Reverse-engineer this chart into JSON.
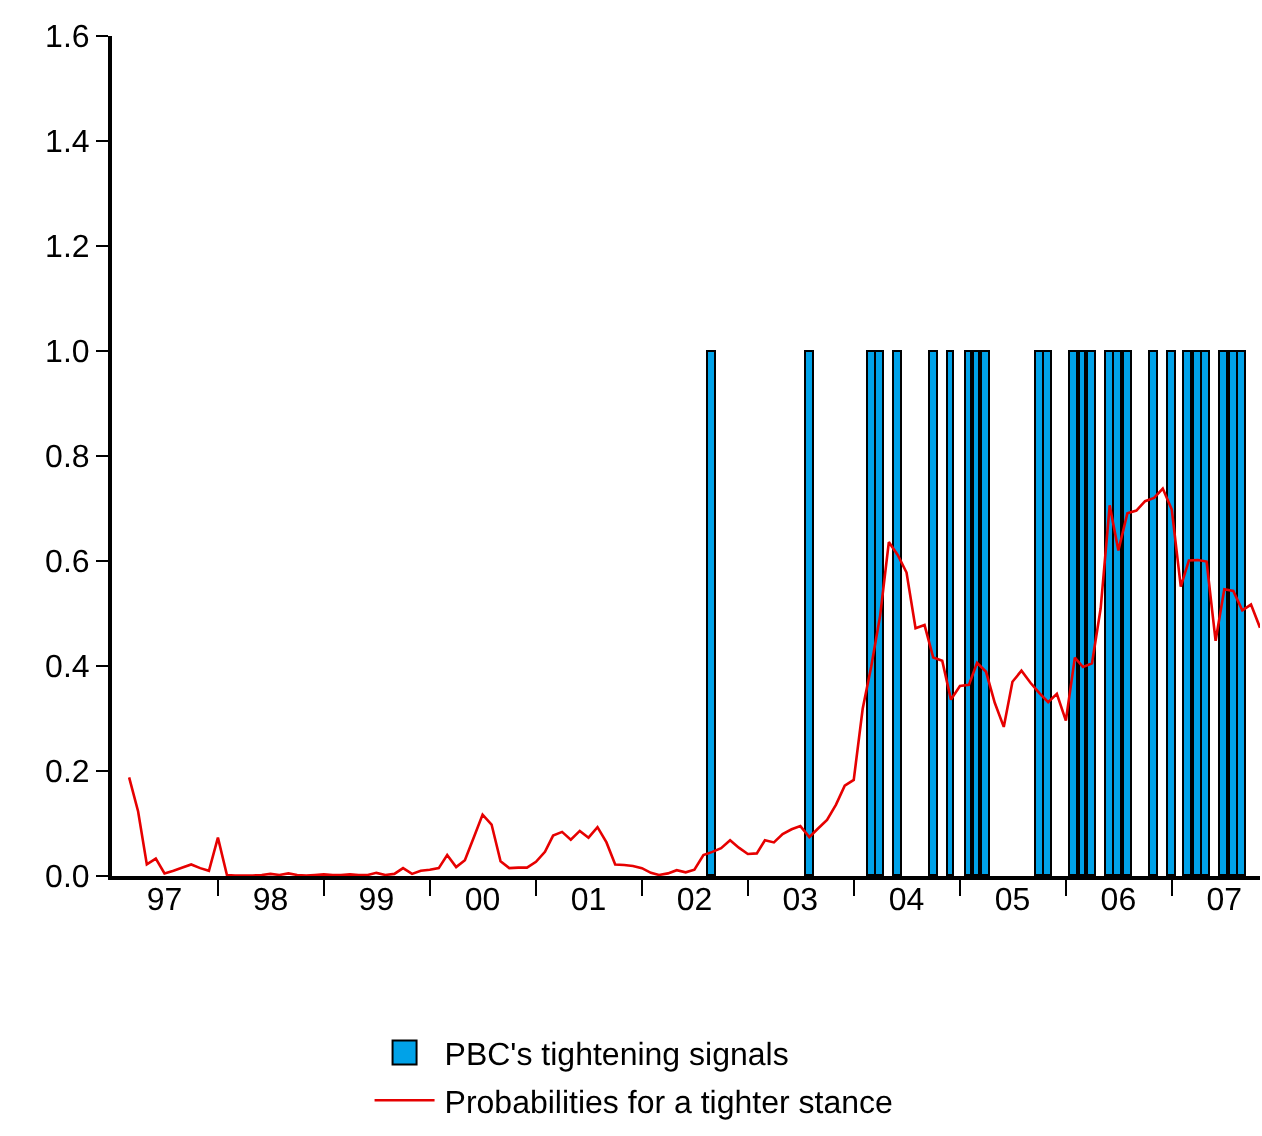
{
  "chart_data": {
    "type": "line",
    "xlim": [
      "1997-01",
      "2007-11"
    ],
    "ylim": [
      0,
      1.6
    ],
    "yticks": [
      {
        "value": 0,
        "label": "0.0"
      },
      {
        "value": 0.2,
        "label": "0.2"
      },
      {
        "value": 0.4,
        "label": "0.4"
      },
      {
        "value": 0.6,
        "label": "0.6"
      },
      {
        "value": 0.8,
        "label": "0.8"
      },
      {
        "value": 1.0,
        "label": "1.0"
      },
      {
        "value": 1.2,
        "label": "1.2"
      },
      {
        "value": 1.4,
        "label": "1.4"
      },
      {
        "value": 1.6,
        "label": "1.6"
      }
    ],
    "xticks": [
      {
        "value": "1998-01",
        "label": null
      },
      {
        "value": "1999-01",
        "label": null
      },
      {
        "value": "2000-01",
        "label": null
      },
      {
        "value": "2001-01",
        "label": null
      },
      {
        "value": "2002-01",
        "label": null
      },
      {
        "value": "2003-01",
        "label": null
      },
      {
        "value": "2004-01",
        "label": null
      },
      {
        "value": "2005-01",
        "label": null
      },
      {
        "value": "2006-01",
        "label": null
      },
      {
        "value": "2007-01",
        "label": null
      },
      {
        "value": "1997-07",
        "label": "97"
      },
      {
        "value": "1998-07",
        "label": "98"
      },
      {
        "value": "1999-07",
        "label": "99"
      },
      {
        "value": "2000-07",
        "label": "00"
      },
      {
        "value": "2001-07",
        "label": "01"
      },
      {
        "value": "2002-07",
        "label": "02"
      },
      {
        "value": "2003-07",
        "label": "03"
      },
      {
        "value": "2004-07",
        "label": "04"
      },
      {
        "value": "2005-07",
        "label": "05"
      },
      {
        "value": "2006-07",
        "label": "06"
      },
      {
        "value": "2007-07",
        "label": "07"
      }
    ],
    "grid": false,
    "legend": "bottom",
    "marker": "none",
    "line_style": "solid",
    "series": [
      {
        "name": "PBC's tightening signals",
        "type": "bar",
        "color": "#00a2e8",
        "x": [
          "2002-09",
          "2003-08",
          "2004-03",
          "2004-04",
          "2004-06",
          "2004-10",
          "2004-12",
          "2005-02",
          "2005-03",
          "2005-04",
          "2005-10",
          "2005-11",
          "2006-02",
          "2006-03",
          "2006-04",
          "2006-06",
          "2006-07",
          "2006-08",
          "2006-11",
          "2007-01",
          "2007-03",
          "2007-04",
          "2007-05",
          "2007-07",
          "2007-08",
          "2007-09"
        ],
        "values": [
          1,
          1,
          1,
          1,
          1,
          1,
          1,
          1,
          1,
          1,
          1,
          1,
          1,
          1,
          1,
          1,
          1,
          1,
          1,
          1,
          1,
          1,
          1,
          1,
          1,
          1
        ]
      },
      {
        "name": "Probabilities for a tighter stance",
        "color": "#e60000",
        "x": [
          "1997-03",
          "1997-04",
          "1997-05",
          "1997-06",
          "1997-07",
          "1997-08",
          "1997-09",
          "1997-10",
          "1997-11",
          "1997-12",
          "1998-01",
          "1998-02",
          "1998-03",
          "1998-04",
          "1998-05",
          "1998-06",
          "1998-07",
          "1998-08",
          "1998-09",
          "1998-10",
          "1998-11",
          "1998-12",
          "1999-01",
          "1999-02",
          "1999-03",
          "1999-04",
          "1999-05",
          "1999-06",
          "1999-07",
          "1999-08",
          "1999-09",
          "1999-10",
          "1999-11",
          "1999-12",
          "2000-01",
          "2000-02",
          "2000-03",
          "2000-04",
          "2000-05",
          "2000-06",
          "2000-07",
          "2000-08",
          "2000-09",
          "2000-10",
          "2000-11",
          "2000-12",
          "2001-01",
          "2001-02",
          "2001-03",
          "2001-04",
          "2001-05",
          "2001-06",
          "2001-07",
          "2001-08",
          "2001-09",
          "2001-10",
          "2001-11",
          "2001-12",
          "2002-01",
          "2002-02",
          "2002-03",
          "2002-04",
          "2002-05",
          "2002-06",
          "2002-07",
          "2002-08",
          "2002-09",
          "2002-10",
          "2002-11",
          "2002-12",
          "2003-01",
          "2003-02",
          "2003-03",
          "2003-04",
          "2003-05",
          "2003-06",
          "2003-07",
          "2003-08",
          "2003-09",
          "2003-10",
          "2003-11",
          "2003-12",
          "2004-01",
          "2004-02",
          "2004-03",
          "2004-04",
          "2004-05",
          "2004-06",
          "2004-07",
          "2004-08",
          "2004-09",
          "2004-10",
          "2004-11",
          "2004-12",
          "2005-01",
          "2005-02",
          "2005-03",
          "2005-04",
          "2005-05",
          "2005-06",
          "2005-07",
          "2005-08",
          "2005-09",
          "2005-10",
          "2005-11",
          "2005-12",
          "2006-01",
          "2006-02",
          "2006-03",
          "2006-04",
          "2006-05",
          "2006-06",
          "2006-07",
          "2006-08",
          "2006-09",
          "2006-10",
          "2006-11",
          "2006-12",
          "2007-01",
          "2007-02",
          "2007-03",
          "2007-04",
          "2007-05",
          "2007-06",
          "2007-07",
          "2007-08",
          "2007-09",
          "2007-10",
          "2007-11"
        ],
        "values": [
          0.188,
          0.123,
          0.022,
          0.033,
          0.005,
          0.01,
          0.016,
          0.022,
          0.015,
          0.01,
          0.073,
          0.002,
          0.001,
          0.001,
          0.001,
          0.002,
          0.004,
          0.002,
          0.005,
          0.002,
          0.001,
          0.002,
          0.003,
          0.002,
          0.002,
          0.003,
          0.002,
          0.002,
          0.006,
          0.002,
          0.004,
          0.015,
          0.004,
          0.01,
          0.012,
          0.015,
          0.04,
          0.017,
          0.03,
          0.074,
          0.117,
          0.098,
          0.028,
          0.015,
          0.016,
          0.016,
          0.027,
          0.046,
          0.077,
          0.084,
          0.069,
          0.086,
          0.073,
          0.093,
          0.064,
          0.022,
          0.021,
          0.019,
          0.015,
          0.006,
          0.002,
          0.005,
          0.011,
          0.007,
          0.012,
          0.04,
          0.046,
          0.053,
          0.068,
          0.054,
          0.042,
          0.043,
          0.068,
          0.064,
          0.08,
          0.089,
          0.095,
          0.074,
          0.091,
          0.107,
          0.136,
          0.172,
          0.183,
          0.319,
          0.398,
          0.496,
          0.636,
          0.611,
          0.578,
          0.472,
          0.478,
          0.416,
          0.41,
          0.336,
          0.362,
          0.364,
          0.406,
          0.389,
          0.33,
          0.284,
          0.37,
          0.391,
          0.368,
          0.349,
          0.331,
          0.347,
          0.296,
          0.416,
          0.398,
          0.405,
          0.51,
          0.706,
          0.62,
          0.691,
          0.696,
          0.714,
          0.72,
          0.738,
          0.698,
          0.551,
          0.601,
          0.602,
          0.599,
          0.448,
          0.546,
          0.543,
          0.506,
          0.517,
          0.473
        ]
      }
    ]
  }
}
